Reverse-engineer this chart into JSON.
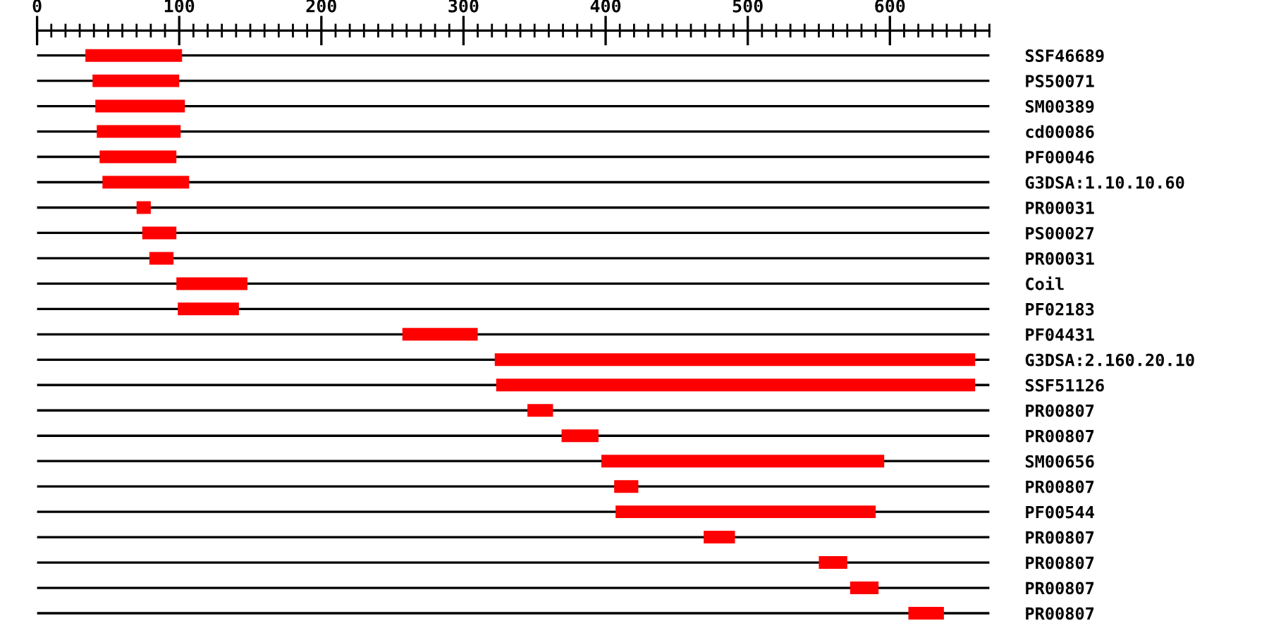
{
  "chart_data": {
    "type": "bar",
    "orientation": "horizontal",
    "categories": [
      "SSF46689",
      "PS50071",
      "SM00389",
      "cd00086",
      "PF00046",
      "G3DSA:1.10.10.60",
      "PR00031",
      "PS00027",
      "PR00031",
      "Coil",
      "PF02183",
      "PF04431",
      "G3DSA:2.160.20.10",
      "SSF51126",
      "PR00807",
      "PR00807",
      "SM00656",
      "PR00807",
      "PF00544",
      "PR00807",
      "PR00807",
      "PR00807",
      "PR00807"
    ],
    "base": [
      34,
      39,
      41,
      42,
      44,
      46,
      70,
      74,
      79,
      98,
      99,
      257,
      322,
      323,
      345,
      369,
      397,
      406,
      407,
      469,
      550,
      572,
      613
    ],
    "values": [
      68,
      61,
      63,
      59,
      54,
      61,
      10,
      24,
      17,
      50,
      43,
      53,
      338,
      337,
      18,
      26,
      199,
      17,
      183,
      22,
      20,
      20,
      25
    ],
    "color": "#ff0000",
    "xlim": [
      0,
      670
    ],
    "xticks": [
      0,
      {
        "value": 10,
        "label": null
      },
      {
        "value": 20,
        "label": null
      },
      {
        "value": 30,
        "label": null
      },
      {
        "value": 40,
        "label": null
      },
      {
        "value": 50,
        "label": null
      },
      {
        "value": 60,
        "label": null
      },
      {
        "value": 70,
        "label": null
      },
      {
        "value": 80,
        "label": null
      },
      {
        "value": 90,
        "label": null
      },
      100,
      {
        "value": 110,
        "label": null
      },
      {
        "value": 120,
        "label": null
      },
      {
        "value": 130,
        "label": null
      },
      {
        "value": 140,
        "label": null
      },
      {
        "value": 150,
        "label": null
      },
      {
        "value": 160,
        "label": null
      },
      {
        "value": 170,
        "label": null
      },
      {
        "value": 180,
        "label": null
      },
      {
        "value": 190,
        "label": null
      },
      200,
      {
        "value": 210,
        "label": null
      },
      {
        "value": 220,
        "label": null
      },
      {
        "value": 230,
        "label": null
      },
      {
        "value": 240,
        "label": null
      },
      {
        "value": 250,
        "label": null
      },
      {
        "value": 260,
        "label": null
      },
      {
        "value": 270,
        "label": null
      },
      {
        "value": 280,
        "label": null
      },
      {
        "value": 290,
        "label": null
      },
      300,
      {
        "value": 310,
        "label": null
      },
      {
        "value": 320,
        "label": null
      },
      {
        "value": 330,
        "label": null
      },
      {
        "value": 340,
        "label": null
      },
      {
        "value": 350,
        "label": null
      },
      {
        "value": 360,
        "label": null
      },
      {
        "value": 370,
        "label": null
      },
      {
        "value": 380,
        "label": null
      },
      {
        "value": 390,
        "label": null
      },
      400,
      {
        "value": 410,
        "label": null
      },
      {
        "value": 420,
        "label": null
      },
      {
        "value": 430,
        "label": null
      },
      {
        "value": 440,
        "label": null
      },
      {
        "value": 450,
        "label": null
      },
      {
        "value": 460,
        "label": null
      },
      {
        "value": 470,
        "label": null
      },
      {
        "value": 480,
        "label": null
      },
      {
        "value": 490,
        "label": null
      },
      500,
      {
        "value": 510,
        "label": null
      },
      {
        "value": 520,
        "label": null
      },
      {
        "value": 530,
        "label": null
      },
      {
        "value": 540,
        "label": null
      },
      {
        "value": 550,
        "label": null
      },
      {
        "value": 560,
        "label": null
      },
      {
        "value": 570,
        "label": null
      },
      {
        "value": 580,
        "label": null
      },
      {
        "value": 590,
        "label": null
      },
      600,
      {
        "value": 610,
        "label": null
      },
      {
        "value": 620,
        "label": null
      },
      {
        "value": 630,
        "label": null
      },
      {
        "value": 640,
        "label": null
      },
      {
        "value": 650,
        "label": null
      },
      {
        "value": 660,
        "label": null
      },
      {
        "value": 670,
        "label": null
      }
    ],
    "grid": "y",
    "legend": false
  }
}
